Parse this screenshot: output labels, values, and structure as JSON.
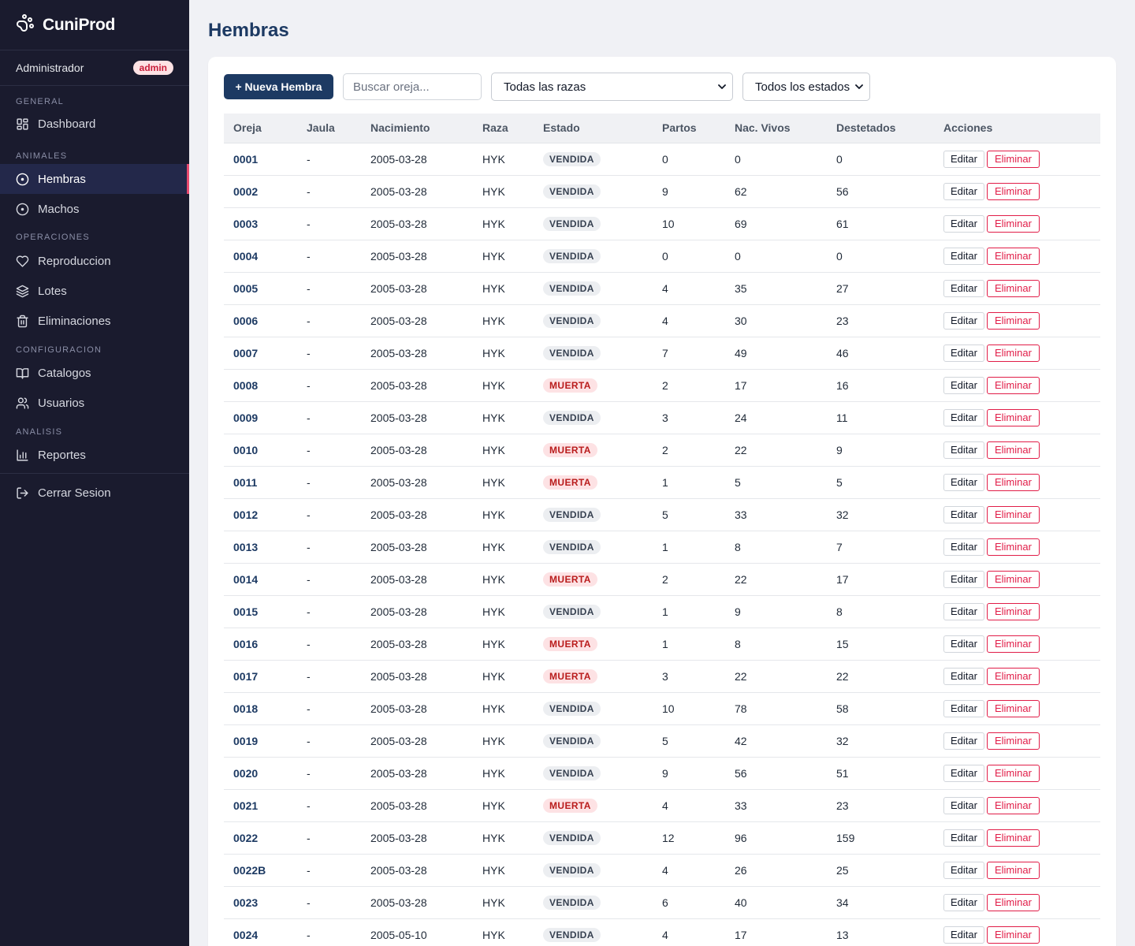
{
  "app": {
    "name": "CuniProd",
    "logo_icon": "paw-icon"
  },
  "user": {
    "name": "Administrador",
    "role": "admin"
  },
  "colors": {
    "sidebar_bg": "#1a1b2e",
    "primary": "#1d3a63",
    "danger": "#e11d48",
    "active_indicator": "#e84a6f"
  },
  "sidebar": {
    "sections": [
      {
        "title": "GENERAL",
        "items": [
          {
            "label": "Dashboard",
            "icon": "dashboard-icon"
          }
        ]
      },
      {
        "title": "ANIMALES",
        "items": [
          {
            "label": "Hembras",
            "icon": "circle-dot-icon",
            "active": true
          },
          {
            "label": "Machos",
            "icon": "circle-dot-icon"
          }
        ]
      },
      {
        "title": "OPERACIONES",
        "items": [
          {
            "label": "Reproduccion",
            "icon": "heart-icon"
          },
          {
            "label": "Lotes",
            "icon": "layers-icon"
          },
          {
            "label": "Eliminaciones",
            "icon": "trash-icon"
          }
        ]
      },
      {
        "title": "CONFIGURACION",
        "items": [
          {
            "label": "Catalogos",
            "icon": "book-icon"
          },
          {
            "label": "Usuarios",
            "icon": "users-icon"
          }
        ]
      },
      {
        "title": "ANALISIS",
        "items": [
          {
            "label": "Reportes",
            "icon": "bar-chart-icon"
          }
        ]
      }
    ],
    "logout": {
      "label": "Cerrar Sesion",
      "icon": "logout-icon"
    }
  },
  "page": {
    "title": "Hembras"
  },
  "toolbar": {
    "new_button": "+ Nueva Hembra",
    "search_placeholder": "Buscar oreja...",
    "breed_filter": "Todas las razas",
    "status_filter": "Todos los estados"
  },
  "table": {
    "columns": [
      "Oreja",
      "Jaula",
      "Nacimiento",
      "Raza",
      "Estado",
      "Partos",
      "Nac. Vivos",
      "Destetados",
      "Acciones"
    ],
    "edit_label": "Editar",
    "delete_label": "Eliminar",
    "rows": [
      {
        "oreja": "0001",
        "jaula": "-",
        "nacimiento": "2005-03-28",
        "raza": "HYK",
        "estado": "VENDIDA",
        "partos": "0",
        "vivos": "0",
        "destetados": "0"
      },
      {
        "oreja": "0002",
        "jaula": "-",
        "nacimiento": "2005-03-28",
        "raza": "HYK",
        "estado": "VENDIDA",
        "partos": "9",
        "vivos": "62",
        "destetados": "56"
      },
      {
        "oreja": "0003",
        "jaula": "-",
        "nacimiento": "2005-03-28",
        "raza": "HYK",
        "estado": "VENDIDA",
        "partos": "10",
        "vivos": "69",
        "destetados": "61"
      },
      {
        "oreja": "0004",
        "jaula": "-",
        "nacimiento": "2005-03-28",
        "raza": "HYK",
        "estado": "VENDIDA",
        "partos": "0",
        "vivos": "0",
        "destetados": "0"
      },
      {
        "oreja": "0005",
        "jaula": "-",
        "nacimiento": "2005-03-28",
        "raza": "HYK",
        "estado": "VENDIDA",
        "partos": "4",
        "vivos": "35",
        "destetados": "27"
      },
      {
        "oreja": "0006",
        "jaula": "-",
        "nacimiento": "2005-03-28",
        "raza": "HYK",
        "estado": "VENDIDA",
        "partos": "4",
        "vivos": "30",
        "destetados": "23"
      },
      {
        "oreja": "0007",
        "jaula": "-",
        "nacimiento": "2005-03-28",
        "raza": "HYK",
        "estado": "VENDIDA",
        "partos": "7",
        "vivos": "49",
        "destetados": "46"
      },
      {
        "oreja": "0008",
        "jaula": "-",
        "nacimiento": "2005-03-28",
        "raza": "HYK",
        "estado": "MUERTA",
        "partos": "2",
        "vivos": "17",
        "destetados": "16"
      },
      {
        "oreja": "0009",
        "jaula": "-",
        "nacimiento": "2005-03-28",
        "raza": "HYK",
        "estado": "VENDIDA",
        "partos": "3",
        "vivos": "24",
        "destetados": "11"
      },
      {
        "oreja": "0010",
        "jaula": "-",
        "nacimiento": "2005-03-28",
        "raza": "HYK",
        "estado": "MUERTA",
        "partos": "2",
        "vivos": "22",
        "destetados": "9"
      },
      {
        "oreja": "0011",
        "jaula": "-",
        "nacimiento": "2005-03-28",
        "raza": "HYK",
        "estado": "MUERTA",
        "partos": "1",
        "vivos": "5",
        "destetados": "5"
      },
      {
        "oreja": "0012",
        "jaula": "-",
        "nacimiento": "2005-03-28",
        "raza": "HYK",
        "estado": "VENDIDA",
        "partos": "5",
        "vivos": "33",
        "destetados": "32"
      },
      {
        "oreja": "0013",
        "jaula": "-",
        "nacimiento": "2005-03-28",
        "raza": "HYK",
        "estado": "VENDIDA",
        "partos": "1",
        "vivos": "8",
        "destetados": "7"
      },
      {
        "oreja": "0014",
        "jaula": "-",
        "nacimiento": "2005-03-28",
        "raza": "HYK",
        "estado": "MUERTA",
        "partos": "2",
        "vivos": "22",
        "destetados": "17"
      },
      {
        "oreja": "0015",
        "jaula": "-",
        "nacimiento": "2005-03-28",
        "raza": "HYK",
        "estado": "VENDIDA",
        "partos": "1",
        "vivos": "9",
        "destetados": "8"
      },
      {
        "oreja": "0016",
        "jaula": "-",
        "nacimiento": "2005-03-28",
        "raza": "HYK",
        "estado": "MUERTA",
        "partos": "1",
        "vivos": "8",
        "destetados": "15"
      },
      {
        "oreja": "0017",
        "jaula": "-",
        "nacimiento": "2005-03-28",
        "raza": "HYK",
        "estado": "MUERTA",
        "partos": "3",
        "vivos": "22",
        "destetados": "22"
      },
      {
        "oreja": "0018",
        "jaula": "-",
        "nacimiento": "2005-03-28",
        "raza": "HYK",
        "estado": "VENDIDA",
        "partos": "10",
        "vivos": "78",
        "destetados": "58"
      },
      {
        "oreja": "0019",
        "jaula": "-",
        "nacimiento": "2005-03-28",
        "raza": "HYK",
        "estado": "VENDIDA",
        "partos": "5",
        "vivos": "42",
        "destetados": "32"
      },
      {
        "oreja": "0020",
        "jaula": "-",
        "nacimiento": "2005-03-28",
        "raza": "HYK",
        "estado": "VENDIDA",
        "partos": "9",
        "vivos": "56",
        "destetados": "51"
      },
      {
        "oreja": "0021",
        "jaula": "-",
        "nacimiento": "2005-03-28",
        "raza": "HYK",
        "estado": "MUERTA",
        "partos": "4",
        "vivos": "33",
        "destetados": "23"
      },
      {
        "oreja": "0022",
        "jaula": "-",
        "nacimiento": "2005-03-28",
        "raza": "HYK",
        "estado": "VENDIDA",
        "partos": "12",
        "vivos": "96",
        "destetados": "159"
      },
      {
        "oreja": "0022B",
        "jaula": "-",
        "nacimiento": "2005-03-28",
        "raza": "HYK",
        "estado": "VENDIDA",
        "partos": "4",
        "vivos": "26",
        "destetados": "25"
      },
      {
        "oreja": "0023",
        "jaula": "-",
        "nacimiento": "2005-03-28",
        "raza": "HYK",
        "estado": "VENDIDA",
        "partos": "6",
        "vivos": "40",
        "destetados": "34"
      },
      {
        "oreja": "0024",
        "jaula": "-",
        "nacimiento": "2005-05-10",
        "raza": "HYK",
        "estado": "VENDIDA",
        "partos": "4",
        "vivos": "17",
        "destetados": "13"
      }
    ]
  }
}
